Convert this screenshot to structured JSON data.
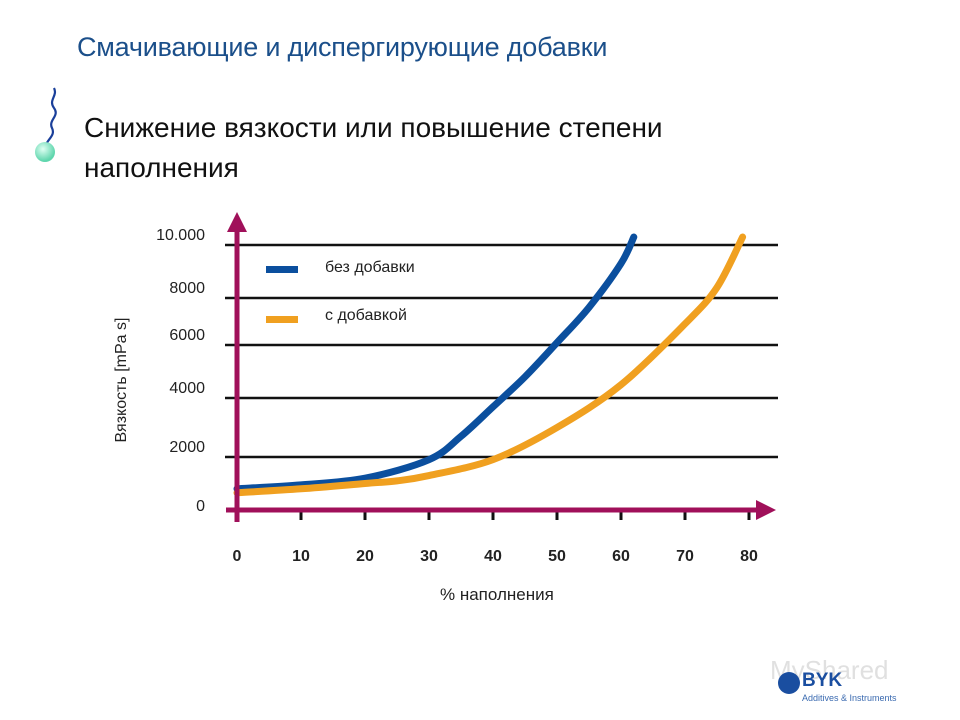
{
  "slide": {
    "title": "Смачивающие и диспергирующие добавки",
    "subtitle_line1": "Снижение вязкости или повышение степени",
    "subtitle_line2": "наполнения"
  },
  "colors": {
    "title": "#1b4f8a",
    "axis": "#a0105a",
    "grid": "#111111",
    "series_without": "#0b4f9e",
    "series_with": "#f0a020",
    "bullet_tail": "#1a3f9a",
    "bullet_head": "#7fe0bf"
  },
  "chart_data": {
    "type": "line",
    "title": "Снижение вязкости или повышение степени наполнения",
    "xlabel": "% наполнения",
    "ylabel": "Вязкость [mPa s]",
    "x_ticks": [
      "0",
      "10",
      "20",
      "30",
      "40",
      "50",
      "60",
      "70",
      "80"
    ],
    "y_ticks": [
      "0",
      "2000",
      "4000",
      "6000",
      "8000",
      "10.000"
    ],
    "xlim": [
      0,
      80
    ],
    "ylim": [
      0,
      10000
    ],
    "grid": "horizontal",
    "legend_position": "upper-left inside",
    "series": [
      {
        "name": "без добавки",
        "x": [
          0,
          10,
          20,
          30,
          35,
          40,
          45,
          50,
          55,
          60,
          62
        ],
        "values": [
          800,
          950,
          1200,
          1900,
          2700,
          3700,
          4800,
          6100,
          7600,
          9300,
          10300
        ]
      },
      {
        "name": "с добавкой",
        "x": [
          0,
          10,
          20,
          25,
          30,
          40,
          50,
          60,
          70,
          75,
          79
        ],
        "values": [
          650,
          800,
          1000,
          1100,
          1300,
          1900,
          3000,
          4500,
          6900,
          8400,
          10300
        ]
      }
    ]
  },
  "legend": [
    {
      "label": "без добавки"
    },
    {
      "label": "с добавкой"
    }
  ],
  "logo": {
    "brand": "BYK",
    "tagline": "Additives & Instruments"
  },
  "watermark": "MyShared"
}
